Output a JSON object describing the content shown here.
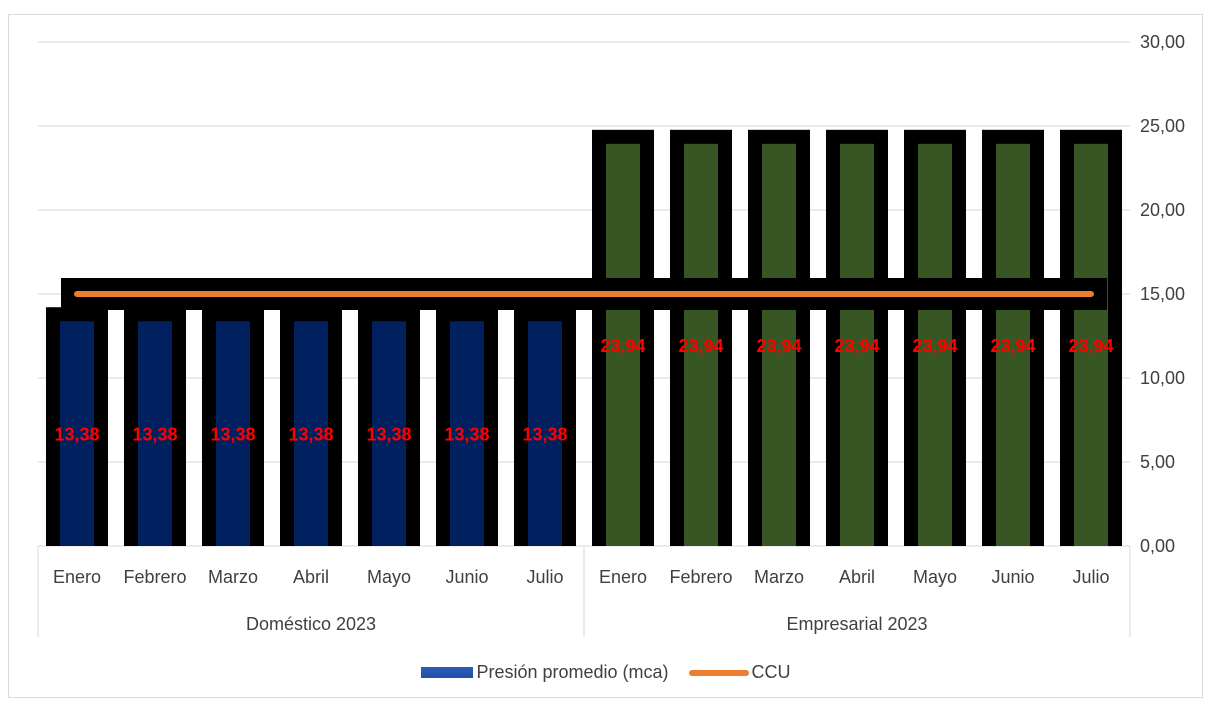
{
  "chart_data": {
    "type": "bar",
    "groups": [
      {
        "label": "Doméstico 2023",
        "categories": [
          "Enero",
          "Febrero",
          "Marzo",
          "Abril",
          "Mayo",
          "Junio",
          "Julio"
        ]
      },
      {
        "label": "Empresarial 2023",
        "categories": [
          "Enero",
          "Febrero",
          "Marzo",
          "Abril",
          "Mayo",
          "Junio",
          "Julio"
        ]
      }
    ],
    "categories": [
      "Enero",
      "Febrero",
      "Marzo",
      "Abril",
      "Mayo",
      "Junio",
      "Julio",
      "Enero",
      "Febrero",
      "Marzo",
      "Abril",
      "Mayo",
      "Junio",
      "Julio"
    ],
    "series": [
      {
        "name": "Presión promedio (mca)",
        "type": "bar",
        "values": [
          13.38,
          13.38,
          13.38,
          13.38,
          13.38,
          13.38,
          13.38,
          23.94,
          23.94,
          23.94,
          23.94,
          23.94,
          23.94,
          23.94
        ],
        "data_labels": [
          "13,38",
          "13,38",
          "13,38",
          "13,38",
          "13,38",
          "13,38",
          "13,38",
          "23,94",
          "23,94",
          "23,94",
          "23,94",
          "23,94",
          "23,94",
          "23,94"
        ],
        "colors": [
          "#002060",
          "#002060",
          "#002060",
          "#002060",
          "#002060",
          "#002060",
          "#002060",
          "#375623",
          "#375623",
          "#375623",
          "#375623",
          "#375623",
          "#375623",
          "#375623"
        ],
        "outline_color": "#000000"
      },
      {
        "name": "CCU",
        "type": "line",
        "values": [
          15,
          15,
          15,
          15,
          15,
          15,
          15,
          15,
          15,
          15,
          15,
          15,
          15,
          15
        ],
        "color": "#ed7d31"
      }
    ],
    "y_axis": {
      "position": "right",
      "ylim": [
        0,
        30
      ],
      "ticks": [
        0,
        5,
        10,
        15,
        20,
        25,
        30
      ],
      "tick_labels": [
        "0,00",
        "5,00",
        "10,00",
        "15,00",
        "20,00",
        "25,00",
        "30,00"
      ]
    },
    "grid": true,
    "legend_position": "bottom",
    "legend": [
      "Presión promedio (mca)",
      "CCU"
    ],
    "data_label_color": "#ff0000"
  }
}
